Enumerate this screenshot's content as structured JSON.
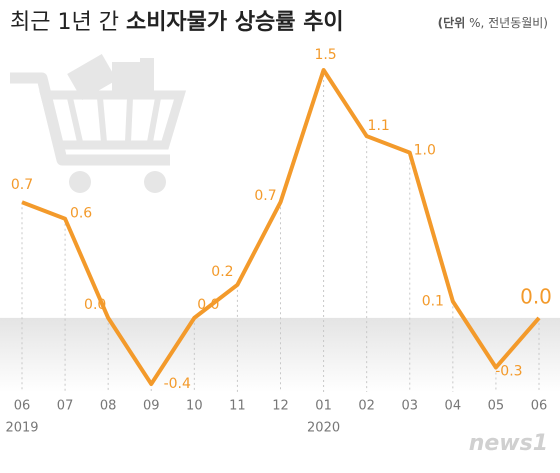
{
  "chart_data": {
    "type": "line",
    "title_light": "최근 1년 간",
    "title_bold": "소비자물가 상승률 추이",
    "unit_bold": "(단위",
    "unit_rest": "%, 전년동월비)",
    "categories": [
      "06",
      "07",
      "08",
      "09",
      "10",
      "11",
      "12",
      "01",
      "02",
      "03",
      "04",
      "05",
      "06"
    ],
    "years": [
      "2019",
      null,
      null,
      null,
      null,
      null,
      null,
      "2020",
      null,
      null,
      null,
      null,
      null
    ],
    "values": [
      0.7,
      0.6,
      0,
      -0.4,
      0,
      0.2,
      0.7,
      1.5,
      1.1,
      1,
      0.1,
      -0.3,
      0
    ],
    "value_labels": [
      "0.7",
      "0.6",
      "0.0",
      "-0.4",
      "0.0",
      "0.2",
      "0.7",
      "1.5",
      "1.1",
      "1.0",
      "0.1",
      "-0.3",
      "0.0"
    ],
    "color": "#f39a2b",
    "source": "news1"
  }
}
